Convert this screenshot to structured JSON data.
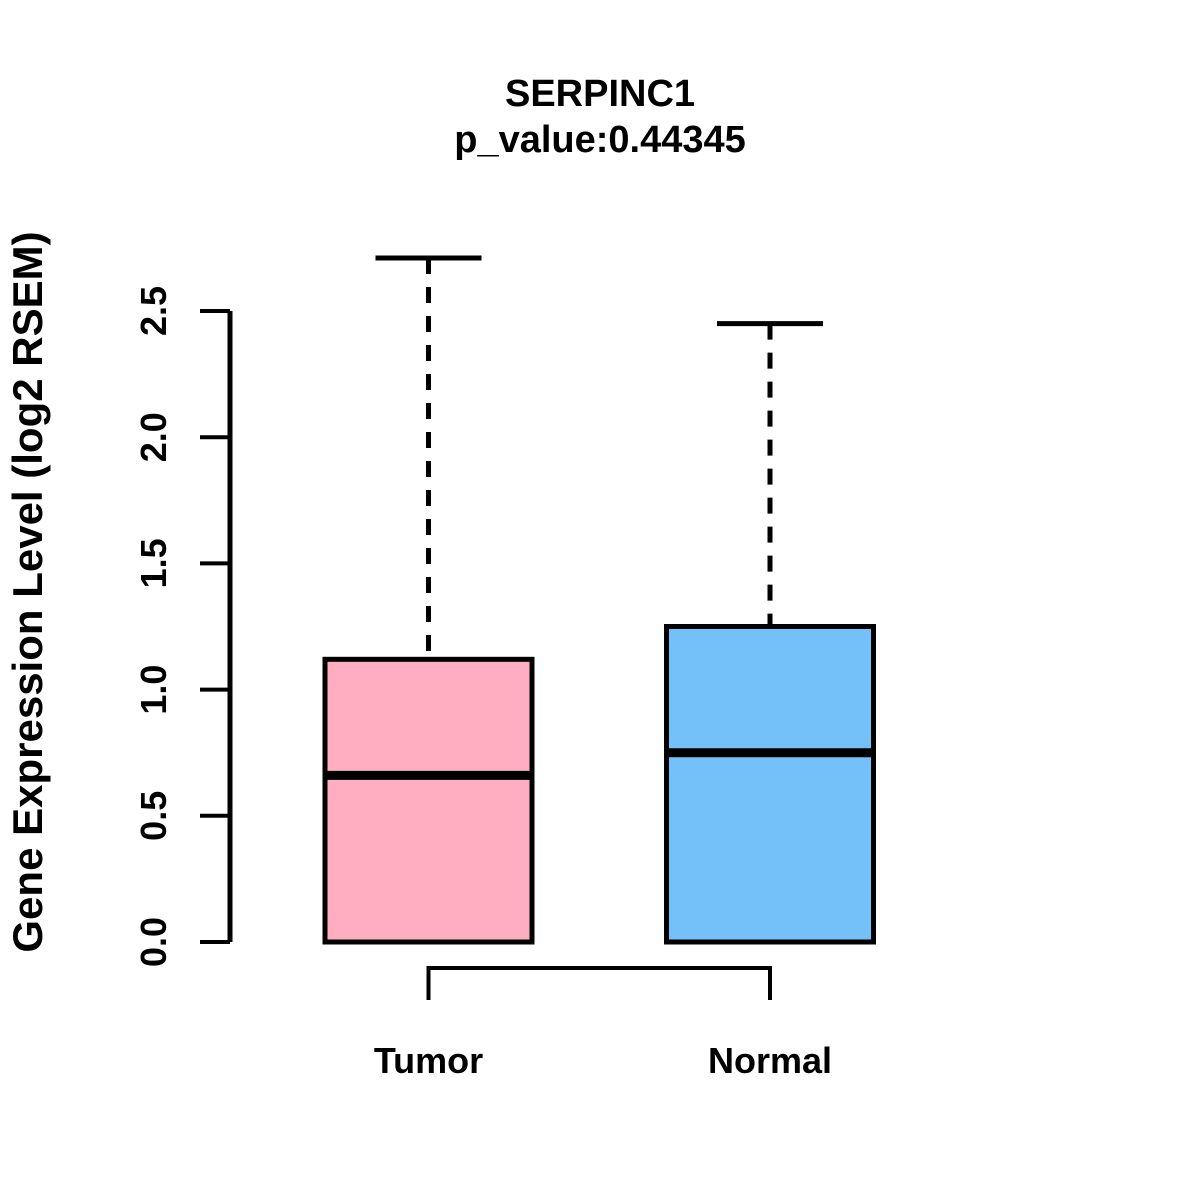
{
  "figure": {
    "title": "SERPINC1",
    "subtitle": "p_value:0.44345",
    "ylabel": "Gene Expression Level (log2 RSEM)"
  },
  "chart_data": {
    "type": "box",
    "title": "SERPINC1",
    "subtitle": "p_value:0.44345",
    "p_value": 0.44345,
    "gene": "SERPINC1",
    "xlabel": "",
    "ylabel": "Gene Expression Level (log2 RSEM)",
    "ylim": [
      0,
      2.75
    ],
    "yticks": [
      0.0,
      0.5,
      1.0,
      1.5,
      2.0,
      2.5
    ],
    "ytick_labels": [
      "0.0",
      "0.5",
      "1.0",
      "1.5",
      "2.0",
      "2.5"
    ],
    "grid": false,
    "legend_position": "none",
    "categories": [
      "Tumor",
      "Normal"
    ],
    "groups": [
      {
        "label": "Tumor",
        "fill_color": "#FFAEC1",
        "stroke_color": "#000000",
        "whisker_low": 0.0,
        "q1": 0.0,
        "median": 0.66,
        "q3": 1.12,
        "whisker_high": 2.71
      },
      {
        "label": "Normal",
        "fill_color": "#74C0F8",
        "stroke_color": "#000000",
        "whisker_low": 0.0,
        "q1": 0.0,
        "median": 0.75,
        "q3": 1.25,
        "whisker_high": 2.45
      }
    ],
    "comparison_bracket": {
      "between": [
        "Tumor",
        "Normal"
      ]
    },
    "colors": {
      "axis": "#000000",
      "background": "#FFFFFF"
    }
  }
}
